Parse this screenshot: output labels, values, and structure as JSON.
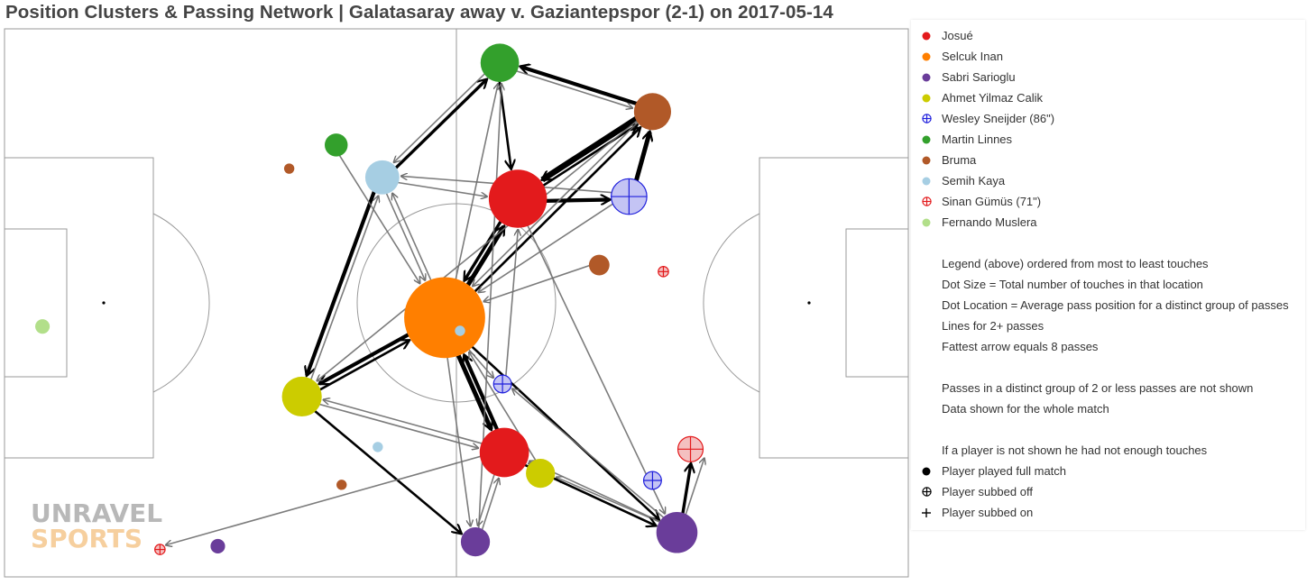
{
  "title": "Position Clusters & Passing Network | Galatasaray away v. Gaziantepspor (2-1) on 2017-05-14",
  "watermark": {
    "line1": "UNRAVEL",
    "line2": "SPORTS"
  },
  "legend": {
    "players": [
      {
        "name": "Josué",
        "color": "#e31a1c",
        "marker": "dot"
      },
      {
        "name": "Selcuk Inan",
        "color": "#ff7f00",
        "marker": "dot"
      },
      {
        "name": "Sabri Sarioglu",
        "color": "#6a3d9a",
        "marker": "dot"
      },
      {
        "name": "Ahmet Yilmaz Calik",
        "color": "#cccc00",
        "marker": "dot"
      },
      {
        "name": "Wesley Sneijder (86\")",
        "color": "#1f1fdc",
        "marker": "subbed-off"
      },
      {
        "name": "Martin Linnes",
        "color": "#33a02c",
        "marker": "dot"
      },
      {
        "name": "Bruma",
        "color": "#b15928",
        "marker": "dot"
      },
      {
        "name": "Semih Kaya",
        "color": "#a6cee3",
        "marker": "dot"
      },
      {
        "name": "Sinan Gümüs (71\")",
        "color": "#e31a1c",
        "marker": "subbed-off"
      },
      {
        "name": "Fernando Muslera",
        "color": "#b2df8a",
        "marker": "dot"
      }
    ],
    "notes": [
      "Legend (above) ordered from most to least touches",
      "Dot Size = Total number of touches in that location",
      "Dot Location = Average pass position for a distinct group of passes",
      "Lines for 2+ passes",
      "Fattest arrow equals 8 passes",
      "",
      "Passes in a distinct group of 2 or less passes are not shown",
      "Data shown for the whole match",
      "",
      "If a player is not shown he had not enough touches"
    ],
    "symbols": [
      {
        "label": "Player played full match",
        "marker": "full-match"
      },
      {
        "label": "Player subbed off",
        "marker": "subbed-off"
      },
      {
        "label": "Player subbed on",
        "marker": "subbed-on"
      }
    ]
  },
  "chart_data": {
    "type": "scatter",
    "description_free": true,
    "colors": {
      "Josué": "#e31a1c",
      "Selcuk Inan": "#ff7f00",
      "Sabri Sarioglu": "#6a3d9a",
      "Ahmet Yilmaz Calik": "#cccc00",
      "Wesley Sneijder": "#1f1fdc",
      "Wesley Sneijder fill": "#c4c4f4",
      "Martin Linnes": "#33a02c",
      "Bruma": "#b15928",
      "Semih Kaya": "#a6cee3",
      "Sinan Gümüs": "#e31a1c",
      "Sinan Gümüs fill": "#f4c0c0",
      "Fernando Muslera": "#b2df8a",
      "pitch_lines": "#9a9a9a",
      "arrow": "#000000"
    },
    "clusters": [
      {
        "id": "SI1",
        "player": "Selcuk Inan",
        "x": 48.7,
        "y": 52.7,
        "touches": 62
      },
      {
        "id": "J1",
        "player": "Josué",
        "x": 56.8,
        "y": 31.0,
        "touches": 32
      },
      {
        "id": "J2",
        "player": "Josué",
        "x": 55.3,
        "y": 77.3,
        "touches": 23
      },
      {
        "id": "SS1",
        "player": "Sabri Sarioglu",
        "x": 74.4,
        "y": 91.9,
        "touches": 16
      },
      {
        "id": "SS2",
        "player": "Sabri Sarioglu",
        "x": 52.1,
        "y": 93.6,
        "touches": 8
      },
      {
        "id": "SS3",
        "player": "Sabri Sarioglu",
        "x": 23.6,
        "y": 94.4,
        "touches": 2
      },
      {
        "id": "AY1",
        "player": "Ahmet Yilmaz Calik",
        "x": 32.9,
        "y": 67.1,
        "touches": 15
      },
      {
        "id": "AY2",
        "player": "Ahmet Yilmaz Calik",
        "x": 59.3,
        "y": 81.1,
        "touches": 8
      },
      {
        "id": "WS1",
        "player": "Wesley Sneijder",
        "x": 69.1,
        "y": 30.6,
        "touches": 12,
        "subbed_off": true
      },
      {
        "id": "WS2",
        "player": "Wesley Sneijder",
        "x": 55.1,
        "y": 64.8,
        "touches": 3,
        "subbed_off": true
      },
      {
        "id": "WS3",
        "player": "Wesley Sneijder",
        "x": 71.7,
        "y": 82.4,
        "touches": 3,
        "subbed_off": true
      },
      {
        "id": "ML1",
        "player": "Martin Linnes",
        "x": 54.8,
        "y": 6.2,
        "touches": 14
      },
      {
        "id": "ML2",
        "player": "Martin Linnes",
        "x": 36.7,
        "y": 21.2,
        "touches": 5
      },
      {
        "id": "BR1",
        "player": "Bruma",
        "x": 71.7,
        "y": 15.1,
        "touches": 13
      },
      {
        "id": "BR2",
        "player": "Bruma",
        "x": 65.8,
        "y": 43.1,
        "touches": 4
      },
      {
        "id": "BR3",
        "player": "Bruma",
        "x": 31.5,
        "y": 25.5,
        "touches": 1
      },
      {
        "id": "BR4",
        "player": "Bruma",
        "x": 37.3,
        "y": 83.2,
        "touches": 1
      },
      {
        "id": "SK1",
        "player": "Semih Kaya",
        "x": 41.8,
        "y": 27.1,
        "touches": 11
      },
      {
        "id": "SK2",
        "player": "Semih Kaya",
        "x": 41.3,
        "y": 76.3,
        "touches": 1
      },
      {
        "id": "SK3",
        "player": "Semih Kaya",
        "x": 50.4,
        "y": 55.1,
        "touches": 1
      },
      {
        "id": "SG1",
        "player": "Sinan Gümüs",
        "x": 75.9,
        "y": 76.7,
        "touches": 6,
        "subbed_off": true
      },
      {
        "id": "SG2",
        "player": "Sinan Gümüs",
        "x": 72.9,
        "y": 44.3,
        "touches": 1,
        "subbed_off": true
      },
      {
        "id": "SG3",
        "player": "Sinan Gümüs",
        "x": 17.2,
        "y": 95.0,
        "touches": 1,
        "subbed_off": true
      },
      {
        "id": "FM1",
        "player": "Fernando Muslera",
        "x": 4.2,
        "y": 54.3,
        "touches": 2
      }
    ],
    "passes": [
      {
        "from": "SI1",
        "to": "J1",
        "count": 6
      },
      {
        "from": "J1",
        "to": "SI1",
        "count": 4
      },
      {
        "from": "SI1",
        "to": "J2",
        "count": 6
      },
      {
        "from": "J2",
        "to": "SI1",
        "count": 5
      },
      {
        "from": "SI1",
        "to": "AY1",
        "count": 5
      },
      {
        "from": "AY1",
        "to": "SI1",
        "count": 3
      },
      {
        "from": "SI1",
        "to": "SS1",
        "count": 3
      },
      {
        "from": "SI1",
        "to": "BR1",
        "count": 3
      },
      {
        "from": "SI1",
        "to": "SK1",
        "count": 2
      },
      {
        "from": "SI1",
        "to": "ML1",
        "count": 2
      },
      {
        "from": "SI1",
        "to": "SS2",
        "count": 2
      },
      {
        "from": "BR1",
        "to": "J1",
        "count": 8
      },
      {
        "from": "WS1",
        "to": "BR1",
        "count": 6
      },
      {
        "from": "J1",
        "to": "WS1",
        "count": 5
      },
      {
        "from": "BR1",
        "to": "ML1",
        "count": 5
      },
      {
        "from": "ML1",
        "to": "J1",
        "count": 3
      },
      {
        "from": "J1",
        "to": "BR1",
        "count": 3
      },
      {
        "from": "SK1",
        "to": "ML1",
        "count": 4
      },
      {
        "from": "SK1",
        "to": "AY1",
        "count": 5
      },
      {
        "from": "SK1",
        "to": "J1",
        "count": 2
      },
      {
        "from": "SK1",
        "to": "SI1",
        "count": 2
      },
      {
        "from": "ML1",
        "to": "SK1",
        "count": 2
      },
      {
        "from": "ML1",
        "to": "BR1",
        "count": 2
      },
      {
        "from": "ML2",
        "to": "SI1",
        "count": 2
      },
      {
        "from": "AY1",
        "to": "SK1",
        "count": 2
      },
      {
        "from": "AY1",
        "to": "J2",
        "count": 2
      },
      {
        "from": "AY1",
        "to": "SS2",
        "count": 3
      },
      {
        "from": "BR1",
        "to": "AY1",
        "count": 2
      },
      {
        "from": "BR1",
        "to": "SI1",
        "count": 2
      },
      {
        "from": "BR2",
        "to": "SI1",
        "count": 2
      },
      {
        "from": "WS1",
        "to": "SK1",
        "count": 2
      },
      {
        "from": "WS1",
        "to": "SI1",
        "count": 2
      },
      {
        "from": "J1",
        "to": "SS1",
        "count": 2
      },
      {
        "from": "SS1",
        "to": "SG1",
        "count": 4
      },
      {
        "from": "SS1",
        "to": "SG1_b",
        "count": 2
      },
      {
        "from": "SS1",
        "to": "AY2",
        "count": 2
      },
      {
        "from": "SS1",
        "to": "WS2",
        "count": 2
      },
      {
        "from": "J2",
        "to": "SS1",
        "count": 3
      },
      {
        "from": "J2",
        "to": "SS2",
        "count": 2
      },
      {
        "from": "J2",
        "to": "AY1",
        "count": 2
      },
      {
        "from": "J2",
        "to": "SG3",
        "count": 2
      },
      {
        "from": "SS2",
        "to": "ML1",
        "count": 2
      },
      {
        "from": "SS2",
        "to": "J2",
        "count": 2
      },
      {
        "from": "AY2",
        "to": "J2",
        "count": 2
      },
      {
        "from": "AY2",
        "to": "SI1",
        "count": 2
      },
      {
        "from": "SS1",
        "to": "J2",
        "count": 2
      },
      {
        "from": "WS2",
        "to": "J1",
        "count": 2
      },
      {
        "from": "SI1",
        "to": "WS2",
        "count": 2
      }
    ]
  }
}
